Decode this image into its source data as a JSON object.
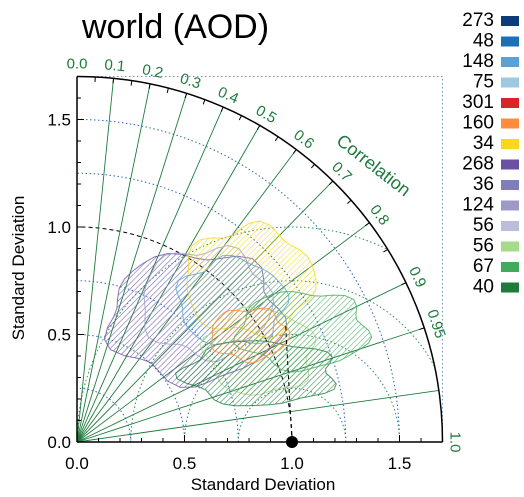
{
  "chart_data": {
    "type": "taylor-diagram",
    "title": "world (AOD)",
    "xlabel": "Standard Deviation",
    "ylabel": "Standard Deviation",
    "correlation_label": "Correlation",
    "std_range": [
      0,
      1.7
    ],
    "std_ticks": [
      {
        "v": 0.0,
        "label": "0.0"
      },
      {
        "v": 0.5,
        "label": "0.5"
      },
      {
        "v": 1.0,
        "label": "1.0"
      },
      {
        "v": 1.5,
        "label": "1.5"
      }
    ],
    "correlation_ticks": [
      {
        "v": 0.0,
        "label": "0.0"
      },
      {
        "v": 0.1,
        "label": "0.1"
      },
      {
        "v": 0.2,
        "label": "0.2"
      },
      {
        "v": 0.3,
        "label": "0.3"
      },
      {
        "v": 0.4,
        "label": "0.4"
      },
      {
        "v": 0.5,
        "label": "0.5"
      },
      {
        "v": 0.6,
        "label": "0.6"
      },
      {
        "v": 0.7,
        "label": "0.7"
      },
      {
        "v": 0.8,
        "label": "0.8"
      },
      {
        "v": 0.9,
        "label": "0.9"
      },
      {
        "v": 0.95,
        "label": "0.95"
      },
      {
        "v": 1.0,
        "label": "1.0"
      }
    ],
    "reference_point": {
      "std": 1.0,
      "corr": 1.0
    },
    "legend_position": "right",
    "series": [
      {
        "name": "273",
        "color": "#0c3c7a"
      },
      {
        "name": "48",
        "color": "#1f6fb4"
      },
      {
        "name": "148",
        "color": "#5aa2d6"
      },
      {
        "name": "75",
        "color": "#9ecae1"
      },
      {
        "name": "301",
        "color": "#d62728"
      },
      {
        "name": "160",
        "color": "#fd8d3c"
      },
      {
        "name": "34",
        "color": "#f9d71c"
      },
      {
        "name": "268",
        "color": "#6a51a3"
      },
      {
        "name": "36",
        "color": "#807dba"
      },
      {
        "name": "124",
        "color": "#9e9ac8"
      },
      {
        "name": "56",
        "color": "#bcbddc"
      },
      {
        "name": "56",
        "color": "#a6db8a"
      },
      {
        "name": "67",
        "color": "#41ab5d"
      },
      {
        "name": "40",
        "color": "#1e7b3c"
      }
    ],
    "regions": [
      {
        "series": 7,
        "color": "#6a51a3",
        "cx": 0.55,
        "cy": 0.58,
        "rx": 0.4,
        "ry": 0.3
      },
      {
        "series": 9,
        "color": "#9e9ac8",
        "cx": 0.6,
        "cy": 0.65,
        "rx": 0.3,
        "ry": 0.25
      },
      {
        "series": 6,
        "color": "#f9d71c",
        "cx": 0.8,
        "cy": 0.75,
        "rx": 0.3,
        "ry": 0.25
      },
      {
        "series": 2,
        "color": "#5aa2d6",
        "cx": 0.72,
        "cy": 0.65,
        "rx": 0.25,
        "ry": 0.2
      },
      {
        "series": 11,
        "color": "#a6db8a",
        "cx": 0.85,
        "cy": 0.42,
        "rx": 0.25,
        "ry": 0.2
      },
      {
        "series": 13,
        "color": "#1e7b3c",
        "cx": 0.85,
        "cy": 0.32,
        "rx": 0.35,
        "ry": 0.15
      },
      {
        "series": 12,
        "color": "#41ab5d",
        "cx": 1.05,
        "cy": 0.52,
        "rx": 0.3,
        "ry": 0.18
      },
      {
        "series": 5,
        "color": "#fd8d3c",
        "cx": 0.8,
        "cy": 0.5,
        "rx": 0.18,
        "ry": 0.12
      }
    ]
  }
}
